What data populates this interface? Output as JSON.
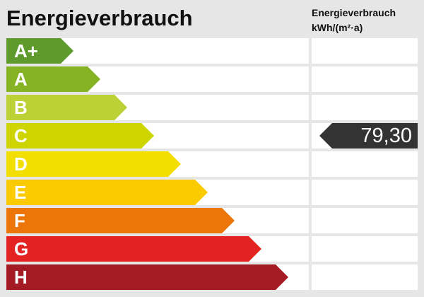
{
  "title": "Energieverbrauch",
  "unit_header": {
    "line1": "Energieverbrauch",
    "line2": "kWh/(m²·a)"
  },
  "classes": [
    {
      "label": "A+",
      "color": "#5e9b2c"
    },
    {
      "label": "A",
      "color": "#86b324"
    },
    {
      "label": "B",
      "color": "#bcd136"
    },
    {
      "label": "C",
      "color": "#cdd400"
    },
    {
      "label": "D",
      "color": "#f2df00"
    },
    {
      "label": "E",
      "color": "#fbcb00"
    },
    {
      "label": "F",
      "color": "#ec760a"
    },
    {
      "label": "G",
      "color": "#e32322"
    },
    {
      "label": "H",
      "color": "#a51b23"
    }
  ],
  "current": {
    "value": "79,30",
    "class": "C",
    "color": "#333333"
  }
}
